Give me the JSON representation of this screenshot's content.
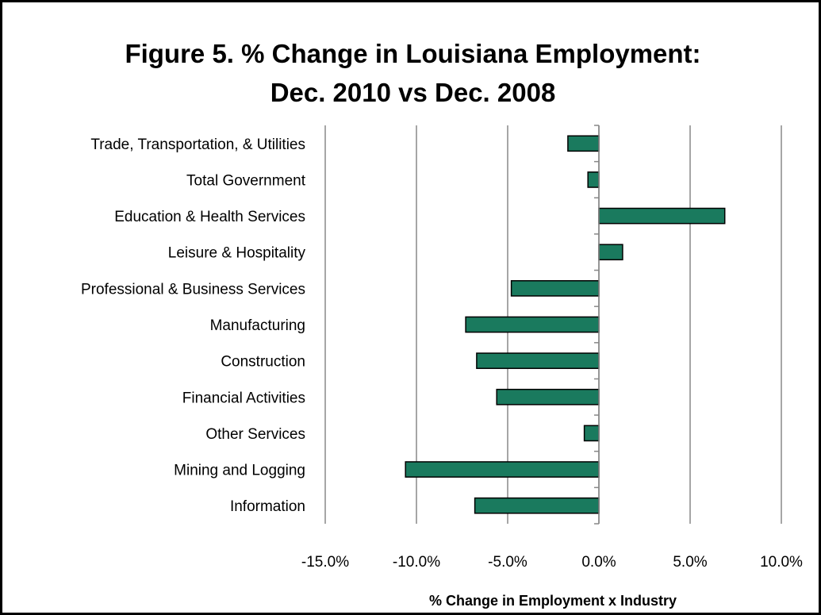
{
  "chart_data": {
    "type": "bar",
    "orientation": "horizontal",
    "title": [
      "Figure 5. % Change in Louisiana Employment:",
      "Dec. 2010 vs Dec. 2008"
    ],
    "xlabel": "% Change in Employment x Industry",
    "ylabel": "",
    "xlim": [
      -15,
      10
    ],
    "xticks": [
      -15,
      -10,
      -5,
      0,
      5,
      10
    ],
    "xtick_labels": [
      "-15.0%",
      "-10.0%",
      "-5.0%",
      "0.0%",
      "5.0%",
      "10.0%"
    ],
    "grid": "vertical",
    "legend": "none",
    "categories": [
      "Trade, Transportation, & Utilities",
      "Total Government",
      "Education & Health Services",
      "Leisure & Hospitality",
      "Professional & Business Services",
      "Manufacturing",
      "Construction",
      "Financial Activities",
      "Other Services",
      "Mining and Logging",
      "Information"
    ],
    "values": [
      -1.7,
      -0.6,
      6.9,
      1.3,
      -4.8,
      -7.3,
      -6.7,
      -5.6,
      -0.8,
      -10.6,
      -6.8
    ],
    "bar_color": "#1a7a5e",
    "bar_edge_color": "#000000",
    "grid_color": "#888888"
  }
}
